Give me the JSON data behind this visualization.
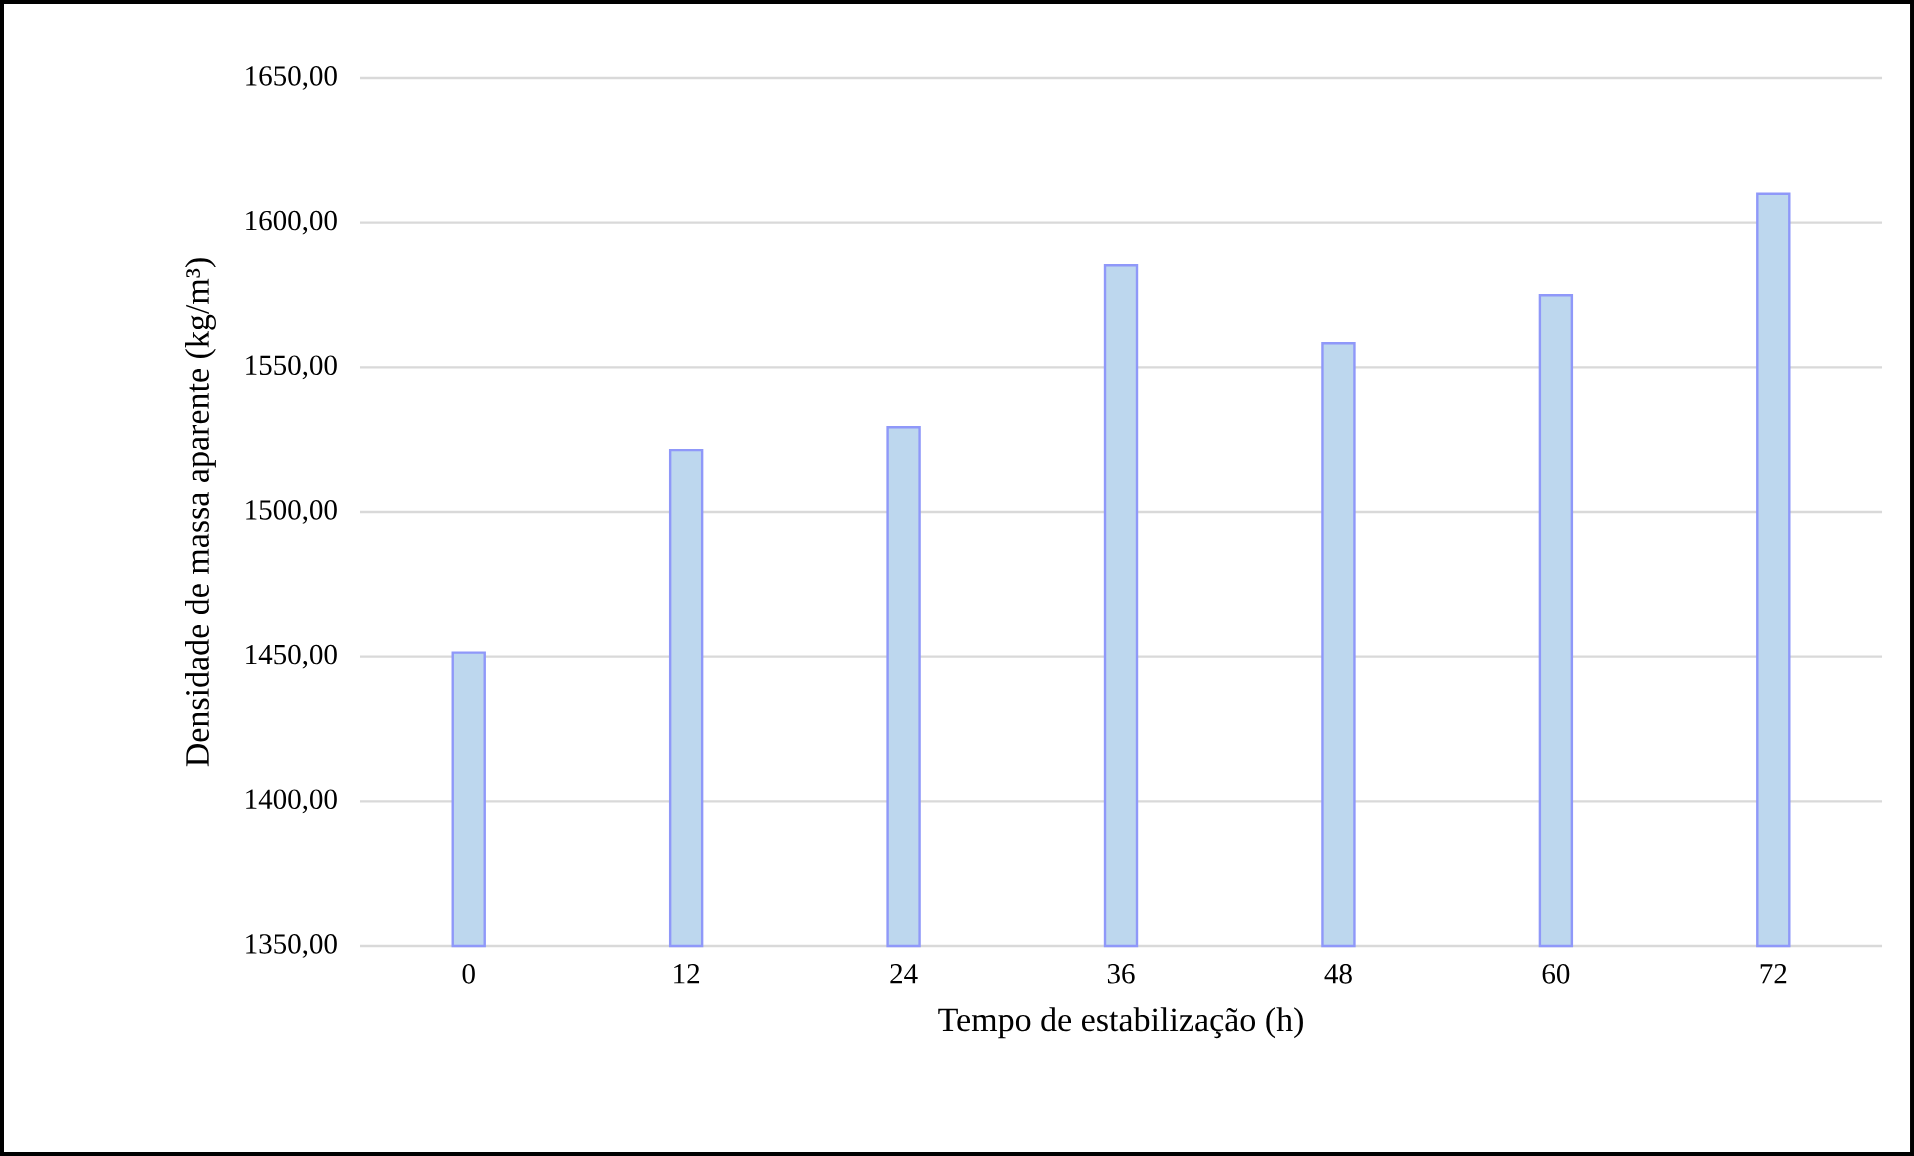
{
  "chart_data": {
    "type": "bar",
    "xlabel": "Tempo de estabilização (h)",
    "ylabel": "Densidade de massa aparente (kg/m³)",
    "categories": [
      "0",
      "12",
      "24",
      "36",
      "48",
      "60",
      "72"
    ],
    "values": [
      1451.4,
      1521.4,
      1529.3,
      1585.3,
      1558.3,
      1574.9,
      1610.0
    ],
    "color": "#bdd7ee",
    "ylim": [
      1350,
      1650
    ],
    "yticks": [
      {
        "value": 1350,
        "label": "1350,00"
      },
      {
        "value": 1400,
        "label": "1400,00"
      },
      {
        "value": 1450,
        "label": "1450,00"
      },
      {
        "value": 1500,
        "label": "1500,00"
      },
      {
        "value": 1550,
        "label": "1550,00"
      },
      {
        "value": 1600,
        "label": "1600,00"
      },
      {
        "value": 1650,
        "label": "1650,00"
      }
    ],
    "grid": "y"
  }
}
